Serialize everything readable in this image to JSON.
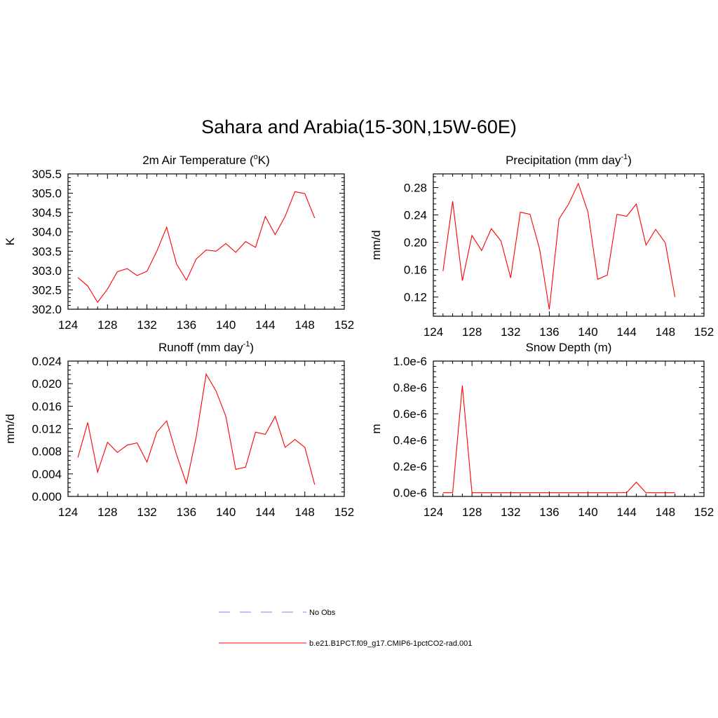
{
  "title": "Sahara and Arabia(15-30N,15W-60E)",
  "colors": {
    "model": "#ff0000",
    "obs": "#9999ff",
    "axis": "#000000"
  },
  "legend": {
    "obs_label": "No Obs",
    "model_label": "b.e21.B1PCT.f09_g17.CMIP6-1pctCO2-rad.001"
  },
  "chart_data": [
    {
      "type": "line",
      "title": "2m Air Temperature (",
      "title_sup": "o",
      "title_tail": "K)",
      "ylabel": "K",
      "xlim": [
        124,
        152
      ],
      "xticks": [
        "124",
        "128",
        "132",
        "136",
        "140",
        "144",
        "148",
        "152"
      ],
      "ylim": [
        302.0,
        305.5
      ],
      "yticks": [
        "302.0",
        "302.5",
        "303.0",
        "303.5",
        "304.0",
        "304.5",
        "305.0",
        "305.5"
      ],
      "series": [
        {
          "x": [
            125,
            126,
            127,
            128,
            129,
            130,
            131,
            132,
            133,
            134,
            135,
            136,
            137,
            138,
            139,
            140,
            141,
            142,
            143,
            144,
            145,
            146,
            147,
            148,
            149
          ],
          "values": [
            302.82,
            302.6,
            302.18,
            302.52,
            302.97,
            303.05,
            302.87,
            302.98,
            303.5,
            304.12,
            303.17,
            302.75,
            303.3,
            303.53,
            303.5,
            303.7,
            303.47,
            303.75,
            303.6,
            304.4,
            303.93,
            304.4,
            305.04,
            304.99,
            304.36
          ]
        }
      ]
    },
    {
      "type": "line",
      "title": "Precipitation (mm day",
      "title_sup": "-1",
      "title_tail": ")",
      "ylabel": "mm/d",
      "xlim": [
        124,
        152
      ],
      "xticks": [
        "124",
        "128",
        "132",
        "136",
        "140",
        "144",
        "148",
        "152"
      ],
      "ylim": [
        0.092,
        0.3
      ],
      "yticks": [
        "0.12",
        "0.16",
        "0.20",
        "0.24",
        "0.28"
      ],
      "yvals": [
        0.12,
        0.16,
        0.2,
        0.24,
        0.28
      ],
      "series": [
        {
          "x": [
            125,
            126,
            127,
            128,
            129,
            130,
            131,
            132,
            133,
            134,
            135,
            136,
            137,
            138,
            139,
            140,
            141,
            142,
            143,
            144,
            145,
            146,
            147,
            148,
            149
          ],
          "values": [
            0.158,
            0.26,
            0.144,
            0.21,
            0.188,
            0.22,
            0.202,
            0.148,
            0.244,
            0.241,
            0.19,
            0.102,
            0.234,
            0.256,
            0.286,
            0.244,
            0.146,
            0.152,
            0.241,
            0.238,
            0.256,
            0.196,
            0.219,
            0.199,
            0.12
          ]
        }
      ]
    },
    {
      "type": "line",
      "title": "Runoff (mm day",
      "title_sup": "-1",
      "title_tail": ")",
      "ylabel": "mm/d",
      "xlim": [
        124,
        152
      ],
      "xticks": [
        "124",
        "128",
        "132",
        "136",
        "140",
        "144",
        "148",
        "152"
      ],
      "ylim": [
        0.0,
        0.024
      ],
      "yticks": [
        "0.000",
        "0.004",
        "0.008",
        "0.012",
        "0.016",
        "0.020",
        "0.024"
      ],
      "series": [
        {
          "x": [
            125,
            126,
            127,
            128,
            129,
            130,
            131,
            132,
            133,
            134,
            135,
            136,
            137,
            138,
            139,
            140,
            141,
            142,
            143,
            144,
            145,
            146,
            147,
            148,
            149
          ],
          "values": [
            0.0069,
            0.0131,
            0.0043,
            0.0096,
            0.0078,
            0.0091,
            0.0095,
            0.0061,
            0.0114,
            0.0134,
            0.0074,
            0.0023,
            0.0106,
            0.0217,
            0.0187,
            0.0142,
            0.0048,
            0.0052,
            0.0114,
            0.011,
            0.0142,
            0.0087,
            0.0101,
            0.0087,
            0.0021
          ]
        }
      ]
    },
    {
      "type": "line",
      "title": "Snow Depth (m)",
      "title_sup": "",
      "title_tail": "",
      "ylabel": "m",
      "xlim": [
        124,
        152
      ],
      "xticks": [
        "124",
        "128",
        "132",
        "136",
        "140",
        "144",
        "148",
        "152"
      ],
      "ylim": [
        -2.8e-08,
        1e-06
      ],
      "yticks": [
        "0.0e-6",
        "0.2e-6",
        "0.4e-6",
        "0.6e-6",
        "0.8e-6",
        "1.0e-6"
      ],
      "yvals": [
        0,
        2e-07,
        4e-07,
        6e-07,
        8e-07,
        1e-06
      ],
      "series": [
        {
          "x": [
            125,
            126,
            127,
            128,
            129,
            130,
            131,
            132,
            133,
            134,
            135,
            136,
            137,
            138,
            139,
            140,
            141,
            142,
            143,
            144,
            145,
            146,
            147,
            148,
            149
          ],
          "values": [
            0,
            0,
            8.15e-07,
            0,
            0,
            0,
            0,
            0,
            0,
            0,
            0,
            0,
            0,
            0,
            0,
            0,
            0,
            0,
            0,
            1e-09,
            8e-08,
            0,
            0,
            0,
            0
          ]
        }
      ]
    }
  ]
}
